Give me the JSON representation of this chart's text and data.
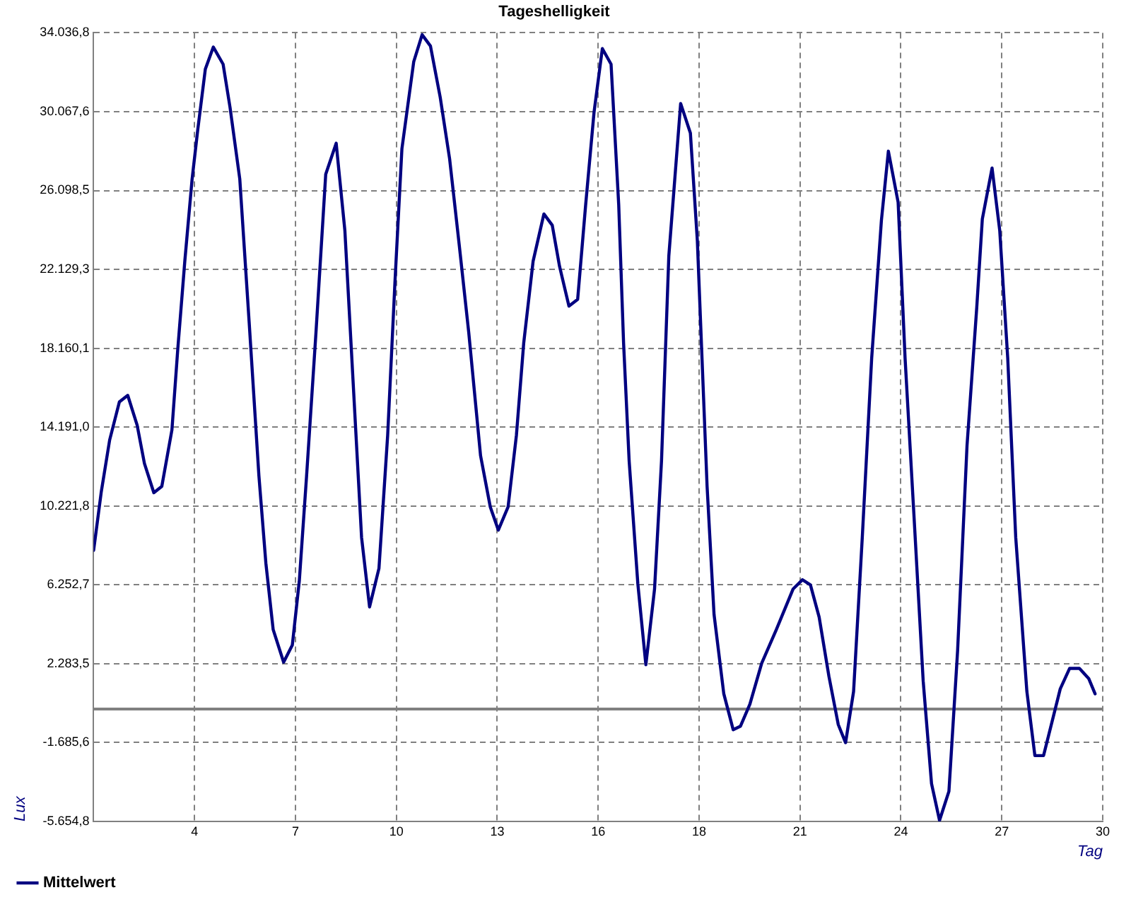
{
  "chart_data": {
    "type": "line",
    "title": "Tageshelligkeit",
    "xlabel": "Tag",
    "ylabel": "Lux",
    "xlim": [
      1,
      30
    ],
    "xticks": [
      {
        "value": 1,
        "label": null
      },
      {
        "value": 3.9,
        "label": "4"
      },
      {
        "value": 6.8,
        "label": "7"
      },
      {
        "value": 9.7,
        "label": "10"
      },
      {
        "value": 12.6,
        "label": "13"
      },
      {
        "value": 15.5,
        "label": "16"
      },
      {
        "value": 18.4,
        "label": "18"
      },
      {
        "value": 21.3,
        "label": "21"
      },
      {
        "value": 24.2,
        "label": "24"
      },
      {
        "value": 27.1,
        "label": "27"
      },
      {
        "value": 30,
        "label": "30"
      }
    ],
    "ylim": [
      -5654.8,
      34036.8
    ],
    "yticks": [
      {
        "value": -5654.8,
        "label": "-5.654,8"
      },
      {
        "value": -1685.6,
        "label": "-1.685,6"
      },
      {
        "value": 2283.5,
        "label": "2.283,5"
      },
      {
        "value": 6252.7,
        "label": "6.252,7"
      },
      {
        "value": 10221.8,
        "label": "10.221,8"
      },
      {
        "value": 14191.0,
        "label": "14.191,0"
      },
      {
        "value": 18160.1,
        "label": "18.160,1"
      },
      {
        "value": 22129.3,
        "label": "22.129,3"
      },
      {
        "value": 26098.5,
        "label": "26.098,5"
      },
      {
        "value": 30067.6,
        "label": "30.067,6"
      },
      {
        "value": 34036.8,
        "label": "34.036,8"
      }
    ],
    "grid": true,
    "legend": "bottom left",
    "marker": "none",
    "line_style": "solid",
    "ref_lines": [
      {
        "axis": "y",
        "value": 0,
        "color": "#808080"
      }
    ],
    "series": [
      {
        "name": "Mittelwert",
        "color": "#000080",
        "x": [
          1.0,
          1.22,
          1.46,
          1.74,
          1.98,
          2.25,
          2.46,
          2.73,
          2.96,
          3.25,
          3.42,
          3.62,
          3.83,
          3.99,
          4.21,
          4.44,
          4.72,
          4.92,
          5.2,
          5.47,
          5.75,
          5.95,
          6.16,
          6.46,
          6.71,
          6.91,
          7.12,
          7.39,
          7.67,
          7.97,
          8.22,
          8.42,
          8.7,
          8.93,
          9.2,
          9.45,
          9.66,
          9.86,
          10.2,
          10.44,
          10.68,
          10.96,
          11.23,
          11.51,
          11.78,
          12.12,
          12.4,
          12.63,
          12.91,
          13.15,
          13.36,
          13.63,
          13.94,
          14.18,
          14.39,
          14.66,
          14.91,
          15.14,
          15.38,
          15.62,
          15.87,
          16.09,
          16.23,
          16.39,
          16.64,
          16.87,
          17.12,
          17.32,
          17.53,
          17.87,
          18.15,
          18.35,
          18.63,
          18.83,
          19.11,
          19.38,
          19.59,
          19.86,
          20.2,
          20.62,
          21.1,
          21.37,
          21.6,
          21.85,
          22.13,
          22.4,
          22.61,
          22.84,
          23.09,
          23.36,
          23.64,
          23.84,
          24.12,
          24.32,
          24.57,
          24.84,
          25.08,
          25.31,
          25.58,
          25.83,
          26.1,
          26.38,
          26.54,
          26.82,
          27.04,
          27.27,
          27.5,
          27.82,
          28.05,
          28.3,
          28.78,
          29.05,
          29.33,
          29.6,
          29.78
        ],
        "values": [
          7990,
          10940,
          13540,
          15460,
          15790,
          14290,
          12360,
          10890,
          11210,
          14050,
          18160,
          22540,
          26680,
          29120,
          32210,
          33320,
          32460,
          30280,
          26680,
          19460,
          11740,
          7340,
          4000,
          2360,
          3220,
          6430,
          11740,
          18960,
          26920,
          28480,
          24090,
          17660,
          8640,
          5140,
          7080,
          13780,
          21510,
          28210,
          32590,
          33940,
          33370,
          30790,
          27700,
          23310,
          18960,
          12750,
          10170,
          9010,
          10170,
          13780,
          18420,
          22540,
          24920,
          24350,
          22280,
          20280,
          20620,
          25380,
          30020,
          33240,
          32460,
          25380,
          18420,
          12490,
          6300,
          2230,
          6040,
          12490,
          22800,
          30480,
          28990,
          23570,
          11210,
          4760,
          770,
          -1040,
          -860,
          250,
          2310,
          4000,
          6040,
          6510,
          6250,
          4630,
          1660,
          -780,
          -1690,
          890,
          8640,
          17660,
          24600,
          28080,
          25510,
          17660,
          9910,
          1420,
          -3750,
          -5600,
          -4140,
          2960,
          13260,
          20220,
          24660,
          27230,
          24090,
          17660,
          8640,
          890,
          -2340,
          -2340,
          1020,
          2050,
          2050,
          1530,
          770
        ]
      }
    ]
  }
}
